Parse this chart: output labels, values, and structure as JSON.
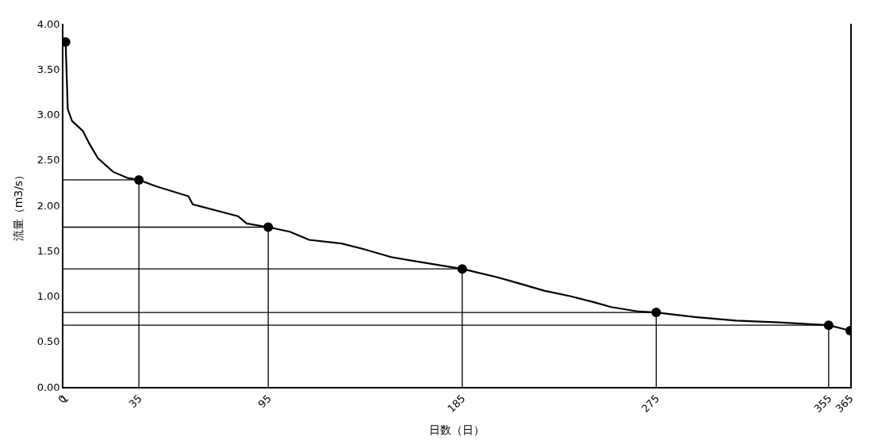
{
  "chart_data": {
    "type": "line",
    "xlabel": "日数（日）",
    "ylabel": "流量（m3/s）",
    "xlim": [
      0,
      365
    ],
    "xticks": [
      0,
      1,
      35,
      95,
      185,
      275,
      355,
      365
    ],
    "ylim": [
      0,
      4
    ],
    "yticks": [
      {
        "value": 0,
        "label": "0.00"
      },
      {
        "value": 0.5,
        "label": "0.50"
      },
      {
        "value": 1,
        "label": "1.00"
      },
      {
        "value": 1.5,
        "label": "1.50"
      },
      {
        "value": 2,
        "label": "2.00"
      },
      {
        "value": 2.5,
        "label": "2.50"
      },
      {
        "value": 3,
        "label": "3.00"
      },
      {
        "value": 3.5,
        "label": "3.50"
      },
      {
        "value": 4,
        "label": "4.00"
      }
    ],
    "line_style": "solid",
    "series": [
      {
        "color": "#000000",
        "marker": "none",
        "x": [
          1,
          2,
          4,
          9,
          12,
          16,
          23,
          30,
          35,
          43,
          58,
          60,
          81,
          85,
          95,
          105,
          114,
          129,
          139,
          152,
          172,
          185,
          201,
          210,
          223,
          235,
          245,
          254,
          267,
          275,
          293,
          312,
          332,
          355,
          365
        ],
        "values": [
          3.8,
          3.06,
          2.93,
          2.82,
          2.68,
          2.52,
          2.37,
          2.3,
          2.28,
          2.21,
          2.1,
          2.01,
          1.88,
          1.8,
          1.76,
          1.71,
          1.62,
          1.58,
          1.52,
          1.43,
          1.35,
          1.3,
          1.21,
          1.15,
          1.06,
          1.0,
          0.94,
          0.88,
          0.83,
          0.82,
          0.77,
          0.73,
          0.71,
          0.68,
          0.62
        ]
      },
      {
        "color": "#000000",
        "marker": "none",
        "x": [
          0,
          35,
          35
        ],
        "values": [
          2.28,
          2.28,
          0
        ]
      },
      {
        "color": "#000000",
        "marker": "none",
        "x": [
          0,
          95,
          95
        ],
        "values": [
          1.76,
          1.76,
          0
        ]
      },
      {
        "color": "#000000",
        "marker": "none",
        "x": [
          0,
          185,
          185
        ],
        "values": [
          1.3,
          1.3,
          0
        ]
      },
      {
        "color": "#000000",
        "marker": "none",
        "x": [
          0,
          275,
          275
        ],
        "values": [
          0.82,
          0.82,
          0
        ]
      },
      {
        "color": "#000000",
        "marker": "none",
        "x": [
          0,
          355,
          355
        ],
        "values": [
          0.68,
          0.68,
          0
        ]
      },
      {
        "type": "scatter",
        "color": "#000000",
        "marker": "circle",
        "x": [
          1,
          35,
          95,
          185,
          275,
          355,
          365
        ],
        "values": [
          3.8,
          2.28,
          1.76,
          1.3,
          0.82,
          0.68,
          0.62
        ]
      }
    ]
  }
}
